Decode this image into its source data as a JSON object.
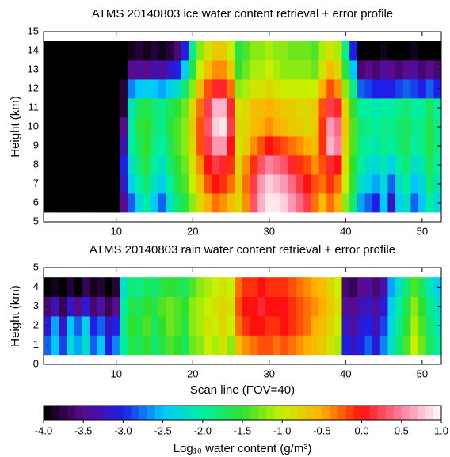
{
  "chart_data": [
    {
      "type": "heatmap",
      "title": "ATMS 20140803 ice water content retrieval + error profile",
      "ylabel": "Height (km)",
      "xlim": [
        0.5,
        52.5
      ],
      "xticks": [
        10,
        20,
        30,
        40,
        50
      ],
      "ylim": [
        5,
        15
      ],
      "yticks": [
        5,
        6,
        7,
        8,
        9,
        10,
        11,
        12,
        13,
        14,
        15
      ],
      "x": [
        1,
        2,
        3,
        4,
        5,
        6,
        7,
        8,
        9,
        10,
        11,
        12,
        13,
        14,
        15,
        16,
        17,
        18,
        19,
        20,
        21,
        22,
        23,
        24,
        25,
        26,
        27,
        28,
        29,
        30,
        31,
        32,
        33,
        34,
        35,
        36,
        37,
        38,
        39,
        40,
        41,
        42,
        43,
        44,
        45,
        46,
        47,
        48,
        49,
        50,
        51,
        52
      ],
      "y": [
        6,
        7,
        8,
        9,
        10,
        11,
        12,
        13,
        14
      ],
      "z": [
        [
          -4,
          -4,
          -4,
          -4,
          -4,
          -4,
          -4,
          -4,
          -4,
          -4,
          -3.5,
          -2.8,
          -2.3,
          -2.0,
          -2.5,
          -2.8,
          -2.2,
          -1.8,
          -1.6,
          -1.2,
          -0.8,
          -0.5,
          -0.3,
          -0.4,
          -0.6,
          -0.8,
          -0.4,
          0.3,
          0.7,
          0.9,
          0.9,
          0.8,
          0.6,
          0.4,
          0.2,
          -0.3,
          -0.6,
          -0.3,
          -0.5,
          -1.2,
          -1.8,
          -2.6,
          -2.8,
          -3.0,
          -2.5,
          -3.2,
          -2.4,
          -2.2,
          -2.8,
          -2.5,
          -2.0,
          -2.3
        ],
        [
          -4,
          -4,
          -4,
          -4,
          -4,
          -4,
          -4,
          -4,
          -4,
          -4,
          -3.2,
          -2.4,
          -2.0,
          -1.8,
          -2.2,
          -2.4,
          -2.0,
          -1.6,
          -1.4,
          -1.0,
          -0.6,
          -0.2,
          0.0,
          -0.1,
          -0.3,
          -0.7,
          -0.3,
          0.2,
          0.6,
          0.8,
          0.7,
          0.6,
          0.4,
          0.2,
          0.0,
          -0.2,
          -0.3,
          -0.1,
          -0.3,
          -1.0,
          -1.6,
          -2.2,
          -2.4,
          -2.6,
          -2.3,
          -2.8,
          -2.2,
          -2.0,
          -2.5,
          -2.3,
          -1.8,
          -2.1
        ],
        [
          -4,
          -4,
          -4,
          -4,
          -4,
          -4,
          -4,
          -4,
          -4,
          -4,
          -3.0,
          -2.2,
          -1.8,
          -1.6,
          -2.0,
          -2.2,
          -1.8,
          -1.5,
          -1.3,
          -0.9,
          -0.4,
          0.0,
          0.2,
          0.1,
          -0.1,
          -0.8,
          -0.4,
          -0.1,
          0.3,
          0.5,
          0.4,
          0.3,
          0.1,
          -0.1,
          -0.2,
          -0.4,
          -0.2,
          0.1,
          0.0,
          -0.9,
          -1.5,
          -2.0,
          -2.2,
          -2.3,
          -2.1,
          -2.4,
          -2.0,
          -1.8,
          -2.2,
          -2.1,
          -1.7,
          -2.0
        ],
        [
          -4,
          -4,
          -4,
          -4,
          -4,
          -4,
          -4,
          -4,
          -4,
          -4,
          -3.3,
          -2.0,
          -1.7,
          -1.5,
          -1.9,
          -2.0,
          -1.7,
          -1.4,
          -1.2,
          -0.8,
          -0.2,
          0.2,
          0.6,
          0.6,
          0.0,
          -0.9,
          -0.7,
          -0.4,
          -0.2,
          0.0,
          -0.1,
          -0.2,
          -0.3,
          -0.4,
          -0.5,
          -0.6,
          -0.1,
          0.7,
          0.5,
          -0.8,
          -1.4,
          -1.9,
          -2.0,
          -2.1,
          -1.9,
          -2.0,
          -1.8,
          -1.7,
          -2.0,
          -1.9,
          -1.6,
          -1.9
        ],
        [
          -4,
          -4,
          -4,
          -4,
          -4,
          -4,
          -4,
          -4,
          -4,
          -4,
          -3.5,
          -2.0,
          -1.6,
          -1.5,
          -1.8,
          -1.9,
          -1.6,
          -1.4,
          -1.2,
          -0.7,
          -0.2,
          0.3,
          0.8,
          0.9,
          0.2,
          -0.8,
          -0.8,
          -0.6,
          -0.5,
          -0.4,
          -0.5,
          -0.6,
          -0.7,
          -0.7,
          -0.8,
          -0.7,
          -0.1,
          0.6,
          0.4,
          -0.7,
          -1.4,
          -1.8,
          -1.9,
          -2.0,
          -1.9,
          -1.9,
          -1.8,
          -1.7,
          -1.9,
          -1.9,
          -1.6,
          -1.9
        ],
        [
          -4,
          -4,
          -4,
          -4,
          -4,
          -4,
          -4,
          -4,
          -4,
          -4,
          -3.8,
          -2.1,
          -1.7,
          -1.6,
          -1.8,
          -1.9,
          -1.7,
          -1.5,
          -1.3,
          -0.8,
          -0.3,
          0.2,
          0.7,
          0.7,
          0.1,
          -0.9,
          -0.8,
          -0.6,
          -0.6,
          -0.5,
          -0.6,
          -0.7,
          -0.7,
          -0.8,
          -0.8,
          -0.7,
          -0.2,
          0.2,
          0.1,
          -0.8,
          -1.5,
          -2.0,
          -2.0,
          -2.1,
          -2.0,
          -2.0,
          -1.9,
          -1.8,
          -2.0,
          -2.0,
          -1.7,
          -2.0
        ],
        [
          -4,
          -4,
          -4,
          -4,
          -4,
          -4,
          -4,
          -4,
          -4,
          -4,
          -3.8,
          -2.7,
          -2.5,
          -2.4,
          -2.5,
          -2.6,
          -2.4,
          -2.2,
          -1.8,
          -1.2,
          -0.6,
          -0.2,
          0.1,
          0.1,
          -0.3,
          -1.2,
          -1.1,
          -0.9,
          -0.9,
          -0.8,
          -0.9,
          -1.0,
          -1.0,
          -1.0,
          -1.0,
          -1.0,
          -0.5,
          -0.2,
          -0.4,
          -1.2,
          -1.9,
          -2.8,
          -2.9,
          -3.0,
          -3.0,
          -3.0,
          -2.9,
          -2.8,
          -2.9,
          -3.0,
          -2.8,
          -3.0
        ],
        [
          -4,
          -4,
          -4,
          -4,
          -4,
          -4,
          -4,
          -4,
          -4,
          -4,
          -4,
          -3.5,
          -3.4,
          -3.5,
          -3.3,
          -3.4,
          -3.2,
          -3.0,
          -2.4,
          -1.6,
          -1.0,
          -0.6,
          -0.4,
          -0.4,
          -0.7,
          -1.5,
          -1.3,
          -1.1,
          -1.1,
          -1.0,
          -1.1,
          -1.2,
          -1.2,
          -1.2,
          -1.2,
          -1.3,
          -0.9,
          -0.6,
          -0.8,
          -1.6,
          -2.5,
          -3.6,
          -3.5,
          -3.6,
          -3.4,
          -3.5,
          -3.6,
          -3.5,
          -3.4,
          -3.6,
          -3.5,
          -3.6
        ],
        [
          -4,
          -4,
          -4,
          -4,
          -4,
          -4,
          -4,
          -4,
          -4,
          -4,
          -4,
          -3.9,
          -3.8,
          -3.9,
          -3.8,
          -3.9,
          -3.8,
          -3.6,
          -3.0,
          -1.9,
          -1.2,
          -0.9,
          -0.7,
          -0.7,
          -1.0,
          -1.6,
          -1.4,
          -1.2,
          -1.2,
          -1.1,
          -1.2,
          -1.2,
          -1.3,
          -1.3,
          -1.3,
          -1.4,
          -1.1,
          -0.9,
          -1.1,
          -1.9,
          -3.0,
          -4,
          -4,
          -4,
          -3.9,
          -4,
          -4,
          -4,
          -3.9,
          -4,
          -4,
          -4
        ]
      ]
    },
    {
      "type": "heatmap",
      "title": "ATMS 20140803 rain water content retrieval + error profile",
      "ylabel": "Height (km)",
      "xlabel": "Scan line (FOV=40)",
      "xlim": [
        0.5,
        52.5
      ],
      "xticks": [
        10,
        20,
        30,
        40,
        50
      ],
      "ylim": [
        0,
        5
      ],
      "yticks": [
        0,
        1,
        2,
        3,
        4,
        5
      ],
      "x": [
        1,
        2,
        3,
        4,
        5,
        6,
        7,
        8,
        9,
        10,
        11,
        12,
        13,
        14,
        15,
        16,
        17,
        18,
        19,
        20,
        21,
        22,
        23,
        24,
        25,
        26,
        27,
        28,
        29,
        30,
        31,
        32,
        33,
        34,
        35,
        36,
        37,
        38,
        39,
        40,
        41,
        42,
        43,
        44,
        45,
        46,
        47,
        48,
        49,
        50,
        51,
        52
      ],
      "y": [
        1,
        2,
        3,
        4
      ],
      "z": [
        [
          -2.8,
          -2.5,
          -2.9,
          -2.3,
          -2.6,
          -2.2,
          -2.8,
          -2.5,
          -3.0,
          -2.7,
          -2.0,
          -1.6,
          -1.7,
          -1.5,
          -1.8,
          -1.6,
          -1.4,
          -1.5,
          -1.7,
          -1.3,
          -1.2,
          -1.0,
          -1.1,
          -0.9,
          -1.2,
          -0.6,
          -0.4,
          -0.3,
          -0.2,
          -0.2,
          -0.3,
          -0.2,
          -0.3,
          -0.4,
          -0.5,
          -0.6,
          -0.7,
          -0.9,
          -1.1,
          -3.0,
          -3.2,
          -3.0,
          -2.8,
          -3.1,
          -2.7,
          -2.2,
          -1.8,
          -1.4,
          -1.0,
          -1.3,
          -1.7,
          -2.0
        ],
        [
          -3.1,
          -2.6,
          -3.2,
          -2.5,
          -2.8,
          -2.4,
          -3.0,
          -2.8,
          -3.2,
          -3.0,
          -1.9,
          -1.5,
          -1.6,
          -1.4,
          -1.7,
          -1.5,
          -1.3,
          -1.4,
          -1.6,
          -1.2,
          -1.1,
          -0.9,
          -1.0,
          -0.8,
          -1.0,
          -0.3,
          -0.1,
          0.0,
          0.0,
          -0.1,
          -0.1,
          0.0,
          -0.1,
          -0.2,
          -0.3,
          -0.5,
          -0.6,
          -0.8,
          -1.0,
          -3.2,
          -3.4,
          -3.1,
          -3.0,
          -3.3,
          -2.9,
          -2.3,
          -1.9,
          -1.5,
          -1.1,
          -1.4,
          -1.8,
          -2.1
        ],
        [
          -3.6,
          -3.3,
          -3.7,
          -3.2,
          -3.5,
          -3.1,
          -3.6,
          -3.4,
          -3.7,
          -3.5,
          -2.0,
          -1.6,
          -1.7,
          -1.5,
          -1.6,
          -1.4,
          -1.3,
          -1.4,
          -1.5,
          -1.2,
          -1.1,
          -1.0,
          -0.9,
          -0.8,
          -0.9,
          -0.2,
          0.0,
          0.0,
          0.1,
          0.0,
          0.0,
          0.0,
          -0.1,
          -0.2,
          -0.3,
          -0.4,
          -0.5,
          -0.7,
          -0.9,
          -3.4,
          -3.5,
          -3.3,
          -3.2,
          -3.4,
          -3.1,
          -2.4,
          -2.0,
          -1.6,
          -1.2,
          -1.5,
          -1.9,
          -2.2
        ],
        [
          -4,
          -3.9,
          -4,
          -3.8,
          -4,
          -3.7,
          -3.9,
          -3.8,
          -4,
          -3.8,
          -2.2,
          -1.8,
          -1.9,
          -1.7,
          -1.8,
          -1.6,
          -1.5,
          -1.6,
          -1.7,
          -1.4,
          -1.2,
          -1.1,
          -1.0,
          -0.9,
          -1.0,
          -0.3,
          -0.1,
          -0.1,
          0.0,
          -0.1,
          -0.1,
          -0.1,
          -0.2,
          -0.3,
          -0.4,
          -0.5,
          -0.6,
          -0.8,
          -1.0,
          -3.6,
          -3.7,
          -3.5,
          -3.4,
          -3.6,
          -3.3,
          -2.6,
          -2.2,
          -1.8,
          -1.4,
          -1.7,
          -2.1,
          -2.4
        ]
      ]
    },
    {
      "type": "colorbar",
      "xlabel": "Log₁₀ water content (g/m³)",
      "xlim": [
        -4,
        1
      ],
      "xticks": [
        {
          "value": -4,
          "label": "-4.0"
        },
        -3.5,
        {
          "value": -3,
          "label": "-3.0"
        },
        -2.5,
        {
          "value": -2,
          "label": "-2.0"
        },
        -1.5,
        {
          "value": -1,
          "label": "-1.0"
        },
        -0.5,
        {
          "value": 0,
          "label": "0.0"
        },
        0.5,
        {
          "value": 1,
          "label": "1.0"
        }
      ],
      "colors": [
        "#000000",
        "#5a0a8c",
        "#1e1ee6",
        "#00c8ff",
        "#00eea0",
        "#30e030",
        "#c8f000",
        "#ffb000",
        "#ff1010",
        "#ff80a0",
        "#ffffff"
      ]
    }
  ]
}
